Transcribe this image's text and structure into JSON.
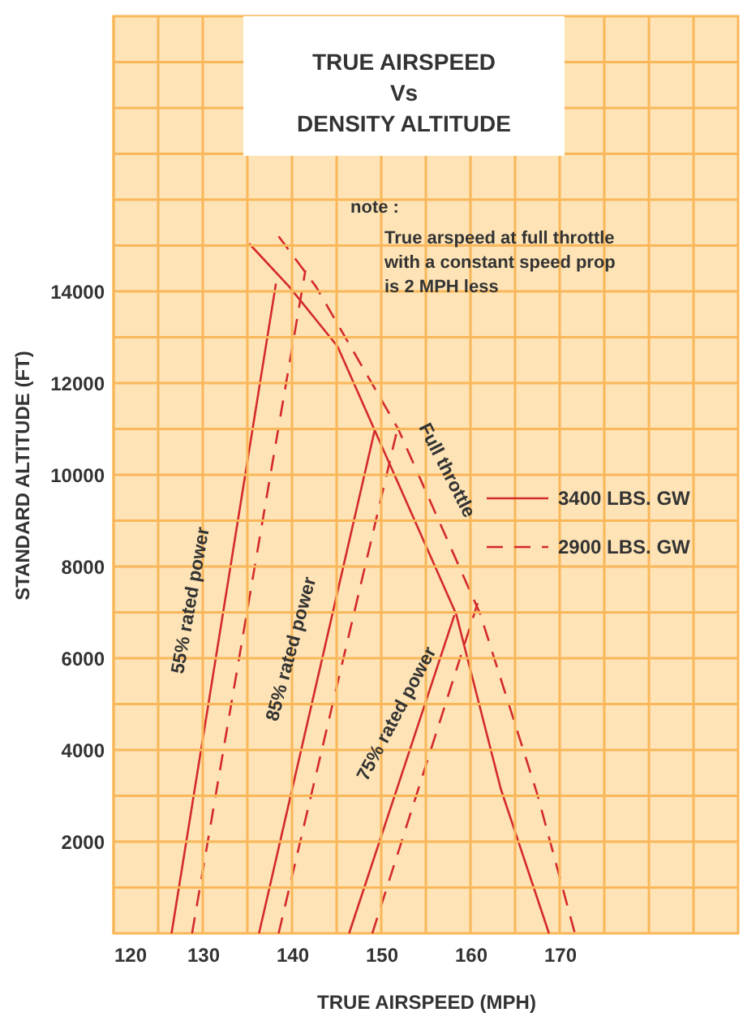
{
  "chart_data": {
    "type": "line",
    "title": "TRUE AIRSPEED\nVs\nDENSITY ALTITUDE",
    "xlabel": "TRUE AIRSPEED (MPH)",
    "ylabel": "STANDARD ALTITUDE (FT)",
    "xlim": [
      120,
      190
    ],
    "ylim": [
      0,
      20000
    ],
    "xticks": [
      120,
      {
        "value": 125,
        "label": null
      },
      130,
      {
        "value": 135,
        "label": null
      },
      140,
      {
        "value": 145,
        "label": null
      },
      150,
      {
        "value": 155,
        "label": null
      },
      160,
      {
        "value": 165,
        "label": null
      },
      170,
      {
        "value": 175,
        "label": null
      },
      {
        "value": 180,
        "label": null
      },
      {
        "value": 185,
        "label": null
      }
    ],
    "yticks": [
      {
        "value": 1000,
        "label": null
      },
      2000,
      {
        "value": 3000,
        "label": null
      },
      4000,
      {
        "value": 5000,
        "label": null
      },
      6000,
      {
        "value": 7000,
        "label": null
      },
      8000,
      {
        "value": 9000,
        "label": null
      },
      10000,
      {
        "value": 11000,
        "label": null
      },
      12000,
      {
        "value": 13000,
        "label": null
      },
      14000,
      {
        "value": 15000,
        "label": null
      },
      {
        "value": 16000,
        "label": null
      },
      {
        "value": 17000,
        "label": null
      },
      {
        "value": 18000,
        "label": null
      },
      {
        "value": 19000,
        "label": null
      }
    ],
    "grid": true,
    "legend": "right",
    "series": [
      {
        "name": "3400 LBS. GW",
        "color": "#d42a2a",
        "line_style": "solid",
        "x": [
          135.2,
          139.7,
          145.1,
          149.2,
          158.4,
          163.4,
          168.8
        ],
        "values": [
          15040,
          14100,
          12800,
          11000,
          6960,
          3150,
          0
        ]
      },
      {
        "name": "2900 LBS. GW",
        "color": "#d42a2a",
        "line_style": "dashed",
        "x": [
          138.5,
          142.7,
          151.9,
          161.1,
          167.5,
          171.7
        ],
        "values": [
          15200,
          14100,
          11000,
          6960,
          3030,
          0
        ]
      },
      {
        "color": "#d42a2a",
        "line_style": "solid",
        "x": [
          126.5,
          138.2
        ],
        "values": [
          0,
          14170
        ]
      },
      {
        "color": "#d42a2a",
        "line_style": "dashed",
        "x": [
          128.8,
          141.5
        ],
        "values": [
          0,
          14460
        ]
      },
      {
        "color": "#d42a2a",
        "line_style": "solid",
        "x": [
          136.3,
          149.3
        ],
        "values": [
          0,
          11000
        ]
      },
      {
        "color": "#d42a2a",
        "line_style": "dashed",
        "x": [
          138.5,
          151.9
        ],
        "values": [
          0,
          11070
        ]
      },
      {
        "color": "#d42a2a",
        "line_style": "solid",
        "x": [
          146.4,
          158.2
        ],
        "values": [
          0,
          6940
        ]
      },
      {
        "color": "#d42a2a",
        "line_style": "dashed",
        "x": [
          149.0,
          160.8
        ],
        "values": [
          0,
          7200
        ]
      }
    ],
    "annotations": [
      "note :",
      "True arspeed at full throttle\nwith a constant speed prop\nis 2 MPH less",
      "Full throttle",
      "55% rated power",
      "85% rated power",
      "75% rated power"
    ]
  }
}
